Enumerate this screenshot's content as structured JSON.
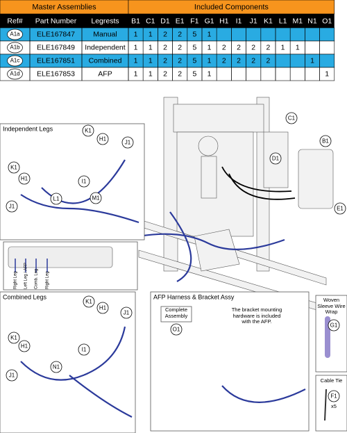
{
  "table": {
    "group_headers": [
      "Master Assemblies",
      "Included Components"
    ],
    "headers": [
      "Ref#",
      "Part Number",
      "Legrests",
      "B1",
      "C1",
      "D1",
      "E1",
      "F1",
      "G1",
      "H1",
      "I1",
      "J1",
      "K1",
      "L1",
      "M1",
      "N1",
      "O1"
    ],
    "rows": [
      [
        "A1a",
        "ELE167847",
        "Manual",
        1,
        1,
        2,
        2,
        5,
        1,
        null,
        null,
        null,
        null,
        null,
        null,
        null,
        null
      ],
      [
        "A1b",
        "ELE167849",
        "Independent",
        1,
        1,
        2,
        2,
        5,
        1,
        2,
        2,
        2,
        2,
        1,
        1,
        null,
        null
      ],
      [
        "A1c",
        "ELE167851",
        "Combined",
        1,
        1,
        2,
        2,
        5,
        1,
        2,
        2,
        2,
        2,
        null,
        null,
        1,
        null
      ],
      [
        "A1d",
        "ELE167853",
        "AFP",
        1,
        1,
        2,
        2,
        5,
        1,
        null,
        null,
        null,
        null,
        null,
        null,
        null,
        1
      ]
    ]
  },
  "main_callouts": [
    "C1",
    "B1",
    "D1",
    "E1"
  ],
  "independent_legs": {
    "title": "Independent Legs",
    "callouts": [
      "K1",
      "H1",
      "J1",
      "K1",
      "H1",
      "I1",
      "M1",
      "L1",
      "J1"
    ]
  },
  "connector_labels": [
    "Right Leg",
    "Left Leg / AFP",
    "Comb. Leg",
    "Right Leg"
  ],
  "combined_legs": {
    "title": "Combined Legs",
    "callouts": [
      "K1",
      "H1",
      "J1",
      "K1",
      "H1",
      "I1",
      "N1",
      "J1"
    ]
  },
  "afp": {
    "title": "AFP Harness & Bracket Assy",
    "box_label": "Complete Assembly",
    "callout": "O1",
    "note": "The bracket mounting hardware is included with the AFP."
  },
  "sleeve": {
    "title": "Woven Sleeve Wire Wrap",
    "callout": "G1"
  },
  "cable_tie": {
    "title": "Cable Tie",
    "callout": "F1",
    "quantity": "x5"
  }
}
